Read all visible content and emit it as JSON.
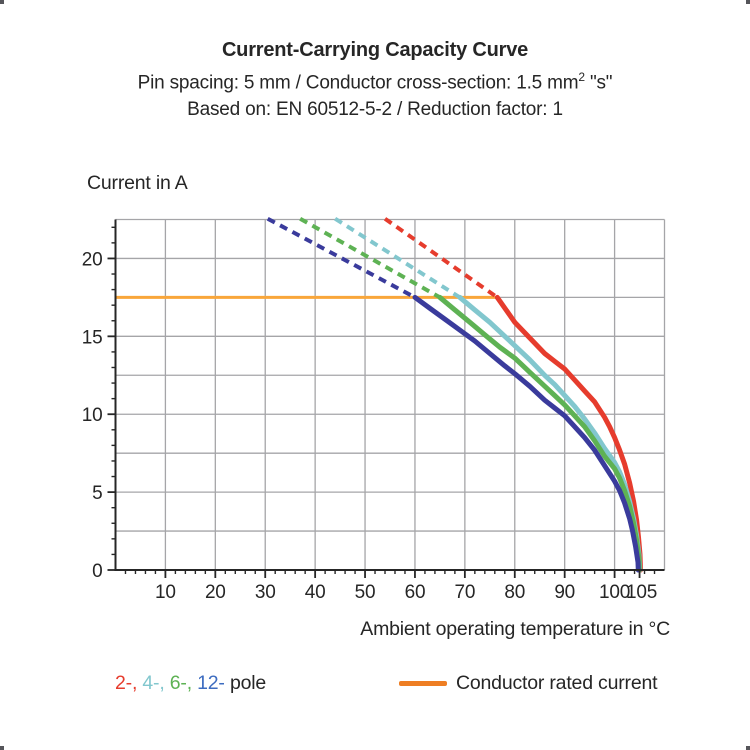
{
  "header": {
    "title": "Current-Carrying Capacity Curve",
    "subtitle_prefix": "Pin spacing: 5 mm / Conductor cross-section: 1.5 mm",
    "subtitle_sup": "2",
    "subtitle_suffix": " \"s\"",
    "based_on": "Based on: EN 60512-5-2 / Reduction factor: 1"
  },
  "chart_data": {
    "type": "line",
    "title": "Current-Carrying Capacity Curve",
    "xlabel": "Ambient operating temperature in °C",
    "ylabel": "Current in A",
    "xlim": [
      0,
      110
    ],
    "ylim": [
      0,
      22.5
    ],
    "x_major_ticks": [
      10,
      20,
      30,
      40,
      50,
      60,
      70,
      80,
      90,
      100,
      105
    ],
    "x_minor_tick_step": 2,
    "y_major_ticks": [
      0,
      5,
      10,
      15,
      20
    ],
    "y_minor_tick_step": 1,
    "x_grid_lines": [
      10,
      20,
      30,
      40,
      50,
      60,
      70,
      80,
      90,
      100,
      110
    ],
    "y_grid_lines": [
      2.5,
      5,
      7.5,
      10,
      12.5,
      15,
      17.5,
      20,
      22.5
    ],
    "grid_color": "#a5a5a8",
    "axis_color": "#262626",
    "rated_current": {
      "label": "Conductor rated current",
      "value_a": 17.5,
      "x_start": 0,
      "x_end": 76.5,
      "color": "#f9a63a"
    },
    "series": [
      {
        "name": "2-pole",
        "color": "#e63c2d",
        "dashed_extension": [
          [
            54,
            22.55
          ],
          [
            76.5,
            17.5
          ]
        ],
        "points": [
          [
            76.5,
            17.5
          ],
          [
            80,
            15.9
          ],
          [
            83,
            14.9
          ],
          [
            86,
            13.9
          ],
          [
            88,
            13.4
          ],
          [
            90,
            12.9
          ],
          [
            92,
            12.2
          ],
          [
            94,
            11.5
          ],
          [
            96,
            10.8
          ],
          [
            98,
            9.8
          ],
          [
            99,
            9.2
          ],
          [
            100,
            8.5
          ],
          [
            101,
            7.7
          ],
          [
            102,
            6.8
          ],
          [
            103,
            5.6
          ],
          [
            103.8,
            4.4
          ],
          [
            104.4,
            3.2
          ],
          [
            104.8,
            2.1
          ],
          [
            105.1,
            1.0
          ],
          [
            105.2,
            0
          ]
        ]
      },
      {
        "name": "4-pole",
        "color": "#82c7ce",
        "dashed_extension": [
          [
            44,
            22.55
          ],
          [
            69,
            17.5
          ]
        ],
        "points": [
          [
            69,
            17.5
          ],
          [
            72,
            16.7
          ],
          [
            75,
            15.9
          ],
          [
            78,
            15.0
          ],
          [
            80,
            14.4
          ],
          [
            83,
            13.5
          ],
          [
            86,
            12.5
          ],
          [
            88,
            11.9
          ],
          [
            90,
            11.2
          ],
          [
            92,
            10.5
          ],
          [
            94,
            9.7
          ],
          [
            96,
            8.8
          ],
          [
            98,
            7.8
          ],
          [
            100,
            6.9
          ],
          [
            101,
            6.3
          ],
          [
            102,
            5.5
          ],
          [
            103,
            4.4
          ],
          [
            103.8,
            3.3
          ],
          [
            104.4,
            2.2
          ],
          [
            104.9,
            1.0
          ],
          [
            105.05,
            0
          ]
        ]
      },
      {
        "name": "6-pole",
        "color": "#5eb254",
        "dashed_extension": [
          [
            37,
            22.55
          ],
          [
            65,
            17.5
          ]
        ],
        "points": [
          [
            65,
            17.5
          ],
          [
            68,
            16.7
          ],
          [
            71,
            15.9
          ],
          [
            74,
            15.1
          ],
          [
            77,
            14.3
          ],
          [
            80,
            13.6
          ],
          [
            83,
            12.7
          ],
          [
            86,
            11.8
          ],
          [
            88,
            11.2
          ],
          [
            90,
            10.6
          ],
          [
            92,
            9.9
          ],
          [
            94,
            9.2
          ],
          [
            96,
            8.3
          ],
          [
            98,
            7.3
          ],
          [
            100,
            6.5
          ],
          [
            101,
            5.9
          ],
          [
            102,
            5.1
          ],
          [
            103,
            4.1
          ],
          [
            103.8,
            3.0
          ],
          [
            104.4,
            1.9
          ],
          [
            104.9,
            0.7
          ],
          [
            104.95,
            0
          ]
        ]
      },
      {
        "name": "12-pole",
        "color": "#3a3b9c",
        "dashed_extension": [
          [
            30.5,
            22.55
          ],
          [
            60,
            17.5
          ]
        ],
        "points": [
          [
            60,
            17.5
          ],
          [
            63,
            16.8
          ],
          [
            66,
            16.1
          ],
          [
            69,
            15.4
          ],
          [
            72,
            14.7
          ],
          [
            75,
            13.9
          ],
          [
            78,
            13.1
          ],
          [
            80,
            12.6
          ],
          [
            83,
            11.8
          ],
          [
            86,
            10.9
          ],
          [
            88,
            10.4
          ],
          [
            90,
            9.9
          ],
          [
            92,
            9.2
          ],
          [
            94,
            8.5
          ],
          [
            96,
            7.7
          ],
          [
            98,
            6.7
          ],
          [
            100,
            5.7
          ],
          [
            101,
            5.1
          ],
          [
            102,
            4.3
          ],
          [
            103,
            3.3
          ],
          [
            103.6,
            2.5
          ],
          [
            104.2,
            1.5
          ],
          [
            104.7,
            0.5
          ],
          [
            104.75,
            0
          ]
        ]
      }
    ],
    "legend_position": "bottom"
  },
  "legend": {
    "poles": [
      {
        "label": "2-,",
        "color": "#e63c2d"
      },
      {
        "label": "4-,",
        "color": "#82c7ce"
      },
      {
        "label": "6-,",
        "color": "#5eb254"
      },
      {
        "label": "12-",
        "color": "#3d6cc0"
      }
    ],
    "pole_suffix": "pole",
    "rated": {
      "label": "Conductor rated current",
      "color": "#ee7e23"
    }
  }
}
